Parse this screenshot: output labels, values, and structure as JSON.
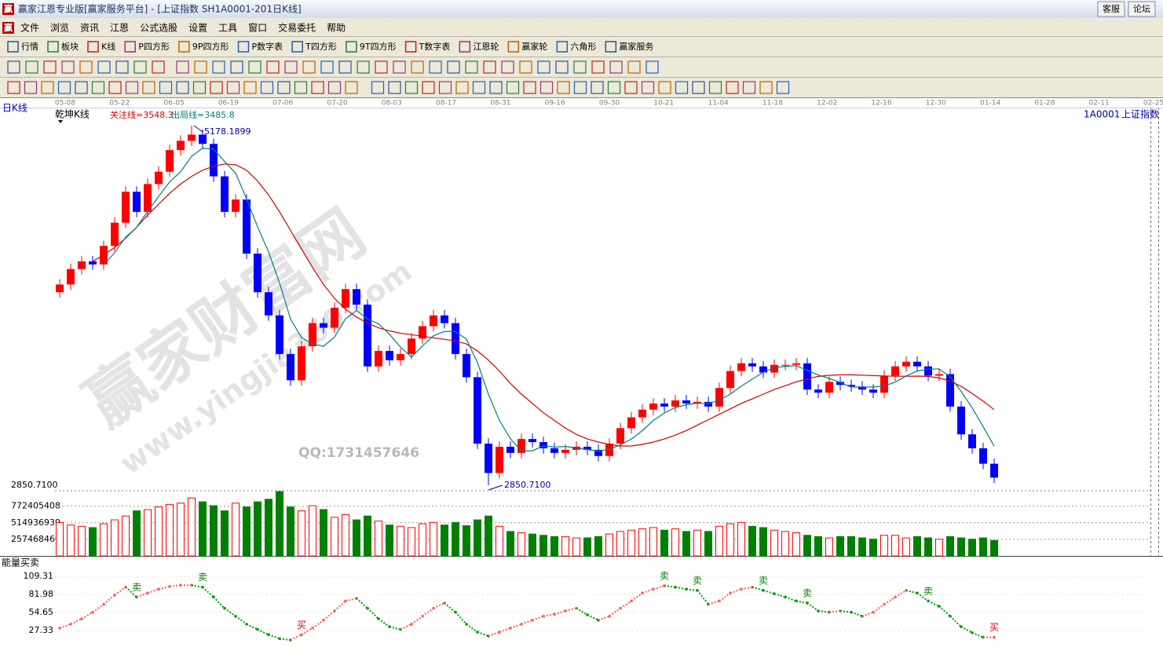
{
  "window": {
    "app_icon": "赢",
    "title": "赢家江恩专业版[赢家服务平台] - [上证指数   SH1A0001-201日K线]",
    "buttons": [
      "客服",
      "论坛"
    ]
  },
  "menu": [
    "文件",
    "浏览",
    "资讯",
    "江恩",
    "公式选股",
    "设置",
    "工具",
    "窗口",
    "交易委托",
    "帮助"
  ],
  "toolbar": [
    "行情",
    "板块",
    "K线",
    "P四方形",
    "9P四方形",
    "P数字表",
    "T四方形",
    "9T四方形",
    "T数字表",
    "江恩轮",
    "赢家轮",
    "六角形",
    "赢家服务"
  ],
  "chart_data": {
    "type": "candlestick",
    "period_label": "日K线",
    "indicator_name": "乾坤K线",
    "focus_line": "关注线=3548.3",
    "exit_line": "出局线=3485.8",
    "symbol": "1A0001",
    "name": "上证指数",
    "dates": [
      "05-08",
      "05-22",
      "06-05",
      "06-19",
      "07-06",
      "07-20",
      "08-03",
      "08-17",
      "08-31",
      "09-16",
      "09-30",
      "10-21",
      "11-04",
      "11-18",
      "12-02",
      "12-16",
      "12-30",
      "01-14",
      "01-28",
      "02-11",
      "02-25"
    ],
    "open": [
      4100,
      4150,
      4250,
      4300,
      4280,
      4400,
      4550,
      4750,
      4620,
      4800,
      4880,
      5020,
      5080,
      5120,
      5060,
      4850,
      4620,
      4700,
      4350,
      4100,
      3950,
      3700,
      3530,
      3750,
      3900,
      3870,
      4000,
      4120,
      4020,
      3620,
      3720,
      3660,
      3700,
      3800,
      3880,
      3950,
      3900,
      3700,
      3550,
      3120,
      2930,
      3100,
      3060,
      3150,
      3130,
      3090,
      3060,
      3080,
      3100,
      3080,
      3040,
      3120,
      3220,
      3290,
      3340,
      3380,
      3360,
      3400,
      3380,
      3390,
      3360,
      3480,
      3590,
      3640,
      3620,
      3580,
      3630,
      3630,
      3640,
      3470,
      3450,
      3520,
      3500,
      3490,
      3470,
      3450,
      3560,
      3620,
      3650,
      3620,
      3560,
      3570,
      3360,
      3180,
      3090,
      2990
    ],
    "close": [
      4150,
      4250,
      4300,
      4280,
      4400,
      4550,
      4750,
      4620,
      4800,
      4880,
      5020,
      5080,
      5120,
      5060,
      4850,
      4620,
      4700,
      4350,
      4100,
      3950,
      3700,
      3530,
      3750,
      3900,
      3870,
      4000,
      4120,
      4020,
      3620,
      3720,
      3660,
      3700,
      3800,
      3880,
      3950,
      3900,
      3700,
      3550,
      3120,
      2930,
      3100,
      3060,
      3150,
      3130,
      3090,
      3060,
      3080,
      3100,
      3080,
      3040,
      3120,
      3220,
      3290,
      3340,
      3380,
      3360,
      3400,
      3380,
      3390,
      3360,
      3480,
      3590,
      3640,
      3620,
      3580,
      3630,
      3630,
      3640,
      3470,
      3450,
      3520,
      3500,
      3490,
      3470,
      3450,
      3560,
      3620,
      3650,
      3620,
      3560,
      3570,
      3360,
      3180,
      3090,
      2990,
      2900
    ],
    "high": [
      4185,
      4285,
      4335,
      4335,
      4435,
      4585,
      4785,
      4785,
      4835,
      4915,
      5055,
      5115,
      5178.1899,
      5155,
      5095,
      4885,
      4735,
      4735,
      4385,
      4135,
      3985,
      3735,
      3785,
      3935,
      3935,
      4035,
      4155,
      4155,
      4055,
      3755,
      3755,
      3735,
      3835,
      3915,
      3985,
      3985,
      3935,
      3735,
      3585,
      3155,
      3135,
      3135,
      3185,
      3185,
      3165,
      3125,
      3115,
      3135,
      3135,
      3115,
      3155,
      3255,
      3325,
      3375,
      3415,
      3415,
      3435,
      3435,
      3425,
      3425,
      3515,
      3625,
      3675,
      3675,
      3655,
      3665,
      3665,
      3675,
      3675,
      3505,
      3555,
      3555,
      3535,
      3525,
      3505,
      3595,
      3655,
      3685,
      3685,
      3655,
      3605,
      3605,
      3395,
      3215,
      3125,
      3025
    ],
    "low": [
      4065,
      4115,
      4215,
      4245,
      4245,
      4365,
      4515,
      4585,
      4585,
      4765,
      4845,
      4985,
      5045,
      5025,
      4815,
      4585,
      4585,
      4315,
      4065,
      3915,
      3665,
      3495,
      3495,
      3715,
      3835,
      3835,
      3965,
      3985,
      3585,
      3585,
      3625,
      3625,
      3665,
      3765,
      3845,
      3865,
      3665,
      3515,
      3085,
      2850.71,
      2895,
      3025,
      3025,
      3095,
      3055,
      3025,
      3025,
      3045,
      3045,
      3005,
      3005,
      3085,
      3185,
      3255,
      3305,
      3325,
      3325,
      3345,
      3345,
      3325,
      3325,
      3445,
      3555,
      3585,
      3545,
      3545,
      3595,
      3595,
      3435,
      3415,
      3415,
      3465,
      3455,
      3435,
      3415,
      3415,
      3525,
      3585,
      3585,
      3525,
      3525,
      3325,
      3145,
      3055,
      2955,
      2865
    ],
    "ma_short": {
      "color": "#008080",
      "values": [
        null,
        null,
        null,
        null,
        4276,
        4356,
        4456,
        4520,
        4624,
        4720,
        4814,
        4880,
        4980,
        5032,
        5026,
        4946,
        4870,
        4704,
        4524,
        4360,
        4160,
        3926,
        3806,
        3766,
        3750,
        3810,
        3928,
        3982,
        3926,
        3896,
        3828,
        3744,
        3680,
        3752,
        3818,
        3846,
        3846,
        3796,
        3644,
        3440,
        3270,
        3152,
        3072,
        3074,
        3106,
        3098,
        3102,
        3092,
        3082,
        3072,
        3084,
        3112,
        3150,
        3204,
        3270,
        3318,
        3354,
        3372,
        3382,
        3378,
        3402,
        3440,
        3492,
        3538,
        3582,
        3612,
        3620,
        3624,
        3594,
        3564,
        3542,
        3516,
        3486,
        3486,
        3486,
        3494,
        3518,
        3558,
        3590,
        3602,
        3604,
        3552,
        3458,
        3352,
        3230,
        3104
      ]
    },
    "ma_long": {
      "color": "#d00000",
      "values": [
        null,
        null,
        null,
        4300,
        4340,
        4390,
        4450,
        4520,
        4600,
        4670,
        4740,
        4800,
        4850,
        4890,
        4915,
        4930,
        4925,
        4890,
        4820,
        4730,
        4620,
        4500,
        4380,
        4260,
        4150,
        4060,
        3990,
        3940,
        3900,
        3870,
        3850,
        3835,
        3825,
        3815,
        3805,
        3795,
        3785,
        3765,
        3720,
        3660,
        3590,
        3510,
        3440,
        3380,
        3320,
        3270,
        3220,
        3180,
        3150,
        3130,
        3115,
        3105,
        3105,
        3115,
        3130,
        3150,
        3175,
        3205,
        3240,
        3275,
        3310,
        3345,
        3380,
        3410,
        3440,
        3470,
        3495,
        3520,
        3540,
        3555,
        3562,
        3565,
        3565,
        3563,
        3560,
        3558,
        3556,
        3556,
        3557,
        3555,
        3545,
        3525,
        3490,
        3445,
        3395,
        3340
      ]
    },
    "up_color": "#ff0000",
    "down_color": "#0000ff",
    "ylim": [
      2850.71,
      5178.1899
    ],
    "yticks": [
      {
        "value": 2850.71,
        "label": "2850.7100"
      }
    ],
    "high_label": "5178.1899",
    "low_label": "2850.7100",
    "watermark": "赢家财富网",
    "watermark_url": "www.yingjia360.com",
    "qq": "QQ:1731457646",
    "volume": {
      "up_color": "#ff0000",
      "down_color": "#008000",
      "values": [
        520000000,
        480000000,
        460000000,
        440000000,
        500000000,
        560000000,
        620000000,
        700000000,
        720000000,
        760000000,
        800000000,
        820000000,
        900000000,
        840000000,
        780000000,
        700000000,
        820000000,
        760000000,
        840000000,
        880000000,
        1000000000,
        760000000,
        700000000,
        780000000,
        720000000,
        600000000,
        640000000,
        560000000,
        620000000,
        540000000,
        480000000,
        460000000,
        440000000,
        500000000,
        520000000,
        480000000,
        520000000,
        470000000,
        560000000,
        620000000,
        460000000,
        380000000,
        360000000,
        340000000,
        320000000,
        300000000,
        300000000,
        280000000,
        280000000,
        300000000,
        340000000,
        380000000,
        400000000,
        420000000,
        440000000,
        400000000,
        420000000,
        380000000,
        400000000,
        380000000,
        460000000,
        500000000,
        520000000,
        460000000,
        440000000,
        400000000,
        380000000,
        360000000,
        320000000,
        300000000,
        280000000,
        300000000,
        300000000,
        280000000,
        260000000,
        320000000,
        320000000,
        280000000,
        300000000,
        280000000,
        260000000,
        300000000,
        280000000,
        260000000,
        280000000,
        240000000
      ],
      "ylim": [
        0,
        1000000000
      ],
      "yticks": [
        257468469,
        514936939,
        772405408
      ]
    },
    "energy": {
      "name": "能量买卖",
      "up_color": "#ff6060",
      "down_color": "#00a000",
      "values": [
        31,
        37,
        45,
        55,
        67,
        81,
        93,
        78,
        84,
        90,
        94,
        96,
        96,
        93,
        78,
        61,
        49,
        37,
        29,
        21,
        15,
        13,
        21,
        31,
        43,
        57,
        72,
        76,
        61,
        45,
        33,
        29,
        37,
        49,
        61,
        69,
        55,
        37,
        25,
        19,
        25,
        31,
        37,
        43,
        49,
        52,
        57,
        61,
        51,
        43,
        49,
        61,
        72,
        84,
        90,
        95,
        93,
        90,
        88,
        67,
        72,
        84,
        90,
        93,
        88,
        83,
        78,
        72,
        69,
        57,
        55,
        57,
        55,
        49,
        55,
        67,
        78,
        88,
        84,
        72,
        64,
        49,
        33,
        24,
        17,
        17
      ],
      "signals": [
        null,
        null,
        null,
        null,
        null,
        null,
        null,
        {
          "text": "卖",
          "color": "#008000"
        },
        null,
        null,
        null,
        null,
        null,
        {
          "text": "卖",
          "color": "#008000"
        },
        null,
        null,
        null,
        null,
        null,
        null,
        null,
        null,
        {
          "text": "买",
          "color": "#e00000"
        },
        null,
        null,
        null,
        null,
        null,
        null,
        null,
        null,
        null,
        null,
        null,
        null,
        null,
        null,
        null,
        null,
        null,
        null,
        null,
        null,
        null,
        null,
        null,
        null,
        null,
        null,
        null,
        null,
        null,
        null,
        null,
        null,
        {
          "text": "卖",
          "color": "#008000"
        },
        null,
        null,
        {
          "text": "卖",
          "color": "#008000"
        },
        null,
        null,
        null,
        null,
        null,
        {
          "text": "卖",
          "color": "#008000"
        },
        null,
        null,
        null,
        {
          "text": "卖",
          "color": "#008000"
        },
        null,
        null,
        null,
        null,
        null,
        null,
        null,
        null,
        null,
        null,
        {
          "text": "卖",
          "color": "#008000"
        },
        null,
        null,
        null,
        null,
        null,
        {
          "text": "买",
          "color": "#e00000"
        }
      ],
      "ylim": [
        0,
        118
      ],
      "yticks": [
        27.33,
        54.65,
        81.98,
        109.31
      ]
    }
  }
}
